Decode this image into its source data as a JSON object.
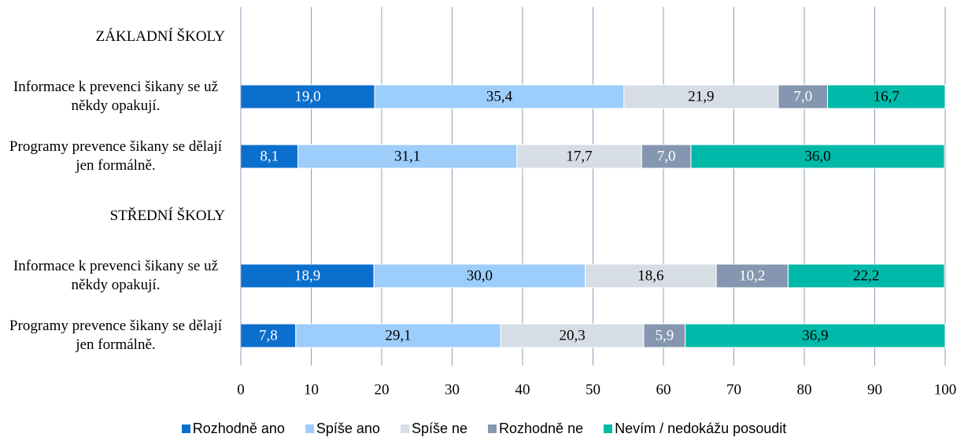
{
  "chart_data": {
    "type": "stacked-bar-horizontal",
    "categories": [
      "ZÁKLADNÍ ŠKOLY",
      "Informace k prevenci šikany se už někdy opakují.",
      "Programy prevence šikany se dělají jen formálně.",
      "STŘEDNÍ ŠKOLY",
      "Informace k prevenci šikany se už někdy opakují.",
      "Programy prevence šikany se dělají jen formálně."
    ],
    "series": [
      {
        "name": "Rozhodně ano",
        "color": "#0b6fce",
        "label_color": "#ffffff",
        "values": [
          null,
          19.0,
          8.1,
          null,
          18.9,
          7.8
        ],
        "value_labels": [
          null,
          "19,0",
          "8,1",
          null,
          "18,9",
          "7,8"
        ]
      },
      {
        "name": "Spíše ano",
        "color": "#9dcdfb",
        "label_color": "#000000",
        "values": [
          null,
          35.4,
          31.1,
          null,
          30.0,
          29.1
        ],
        "value_labels": [
          null,
          "35,4",
          "31,1",
          null,
          "30,0",
          "29,1"
        ]
      },
      {
        "name": "Spíše ne",
        "color": "#d7dde5",
        "label_color": "#000000",
        "values": [
          null,
          21.9,
          17.7,
          null,
          18.6,
          20.3
        ],
        "value_labels": [
          null,
          "21,9",
          "17,7",
          null,
          "18,6",
          "20,3"
        ]
      },
      {
        "name": "Rozhodně ne",
        "color": "#8597b0",
        "label_color": "#ffffff",
        "values": [
          null,
          7.0,
          7.0,
          null,
          10.2,
          5.9
        ],
        "value_labels": [
          null,
          "7,0",
          "7,0",
          null,
          "10,2",
          "5,9"
        ]
      },
      {
        "name": "Nevím / nedokážu posoudit",
        "color": "#00b9a9",
        "label_color": "#000000",
        "values": [
          null,
          16.7,
          36.0,
          null,
          22.2,
          36.9
        ],
        "value_labels": [
          null,
          "16,7",
          "36,0",
          null,
          "22,2",
          "36,9"
        ]
      }
    ],
    "xlim": [
      0,
      100
    ],
    "xticks": [
      0,
      10,
      20,
      30,
      40,
      50,
      60,
      70,
      80,
      90,
      100
    ],
    "grid": true,
    "legend": "bottom"
  }
}
